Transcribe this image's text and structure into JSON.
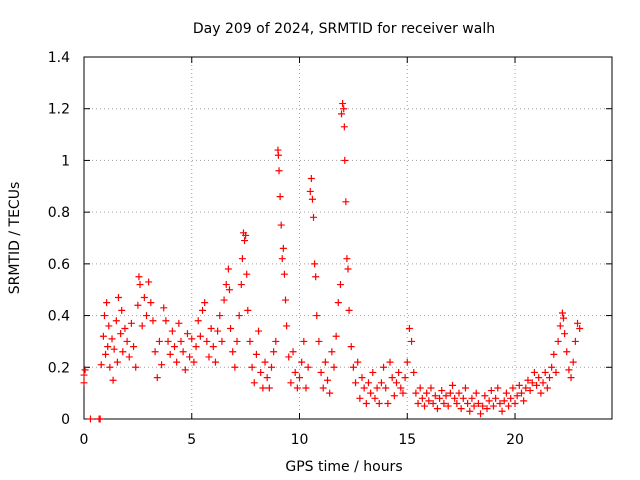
{
  "chart_data": {
    "type": "scatter",
    "title": "Day 209 of 2024, SRMTID for receiver walh",
    "xlabel": "GPS time / hours",
    "ylabel": "SRMTID / TECUs",
    "xlim": [
      0,
      24.5
    ],
    "ylim": [
      0,
      1.4
    ],
    "xticks": [
      0,
      5,
      10,
      15,
      20
    ],
    "xtick_labels": [
      "0",
      "5",
      "10",
      "15",
      "20"
    ],
    "yticks": [
      0,
      0.2,
      0.4,
      0.6,
      0.8,
      1,
      1.2,
      1.4
    ],
    "ytick_labels": [
      "0",
      "0.2",
      "0.4",
      "0.6",
      "0.8",
      "1",
      "1.2",
      "1.4"
    ],
    "grid": true,
    "marker": "+",
    "color": "#ff0000",
    "series": [
      {
        "name": "SRMTID",
        "points": [
          [
            0.0,
            0.17
          ],
          [
            0.0,
            0.14
          ],
          [
            0.05,
            0.19
          ],
          [
            0.3,
            0.0
          ],
          [
            0.7,
            0.0
          ],
          [
            0.75,
            0.0
          ],
          [
            0.8,
            0.21
          ],
          [
            0.9,
            0.32
          ],
          [
            0.95,
            0.4
          ],
          [
            1.0,
            0.25
          ],
          [
            1.05,
            0.45
          ],
          [
            1.1,
            0.28
          ],
          [
            1.15,
            0.36
          ],
          [
            1.2,
            0.2
          ],
          [
            1.3,
            0.31
          ],
          [
            1.35,
            0.15
          ],
          [
            1.4,
            0.27
          ],
          [
            1.5,
            0.38
          ],
          [
            1.55,
            0.22
          ],
          [
            1.6,
            0.47
          ],
          [
            1.7,
            0.33
          ],
          [
            1.75,
            0.42
          ],
          [
            1.8,
            0.26
          ],
          [
            1.9,
            0.35
          ],
          [
            2.0,
            0.3
          ],
          [
            2.1,
            0.24
          ],
          [
            2.2,
            0.37
          ],
          [
            2.3,
            0.28
          ],
          [
            2.4,
            0.2
          ],
          [
            2.5,
            0.44
          ],
          [
            2.55,
            0.55
          ],
          [
            2.6,
            0.52
          ],
          [
            2.7,
            0.36
          ],
          [
            2.8,
            0.47
          ],
          [
            2.9,
            0.4
          ],
          [
            3.0,
            0.53
          ],
          [
            3.1,
            0.45
          ],
          [
            3.2,
            0.38
          ],
          [
            3.3,
            0.26
          ],
          [
            3.4,
            0.16
          ],
          [
            3.5,
            0.3
          ],
          [
            3.6,
            0.21
          ],
          [
            3.7,
            0.43
          ],
          [
            3.8,
            0.38
          ],
          [
            3.9,
            0.3
          ],
          [
            4.0,
            0.25
          ],
          [
            4.1,
            0.34
          ],
          [
            4.2,
            0.28
          ],
          [
            4.3,
            0.22
          ],
          [
            4.4,
            0.37
          ],
          [
            4.5,
            0.3
          ],
          [
            4.6,
            0.26
          ],
          [
            4.7,
            0.19
          ],
          [
            4.8,
            0.33
          ],
          [
            4.9,
            0.24
          ],
          [
            5.0,
            0.31
          ],
          [
            5.1,
            0.22
          ],
          [
            5.2,
            0.28
          ],
          [
            5.3,
            0.38
          ],
          [
            5.4,
            0.32
          ],
          [
            5.5,
            0.42
          ],
          [
            5.6,
            0.45
          ],
          [
            5.7,
            0.3
          ],
          [
            5.8,
            0.24
          ],
          [
            5.9,
            0.35
          ],
          [
            6.0,
            0.28
          ],
          [
            6.1,
            0.22
          ],
          [
            6.2,
            0.34
          ],
          [
            6.3,
            0.4
          ],
          [
            6.4,
            0.3
          ],
          [
            6.5,
            0.46
          ],
          [
            6.6,
            0.52
          ],
          [
            6.7,
            0.58
          ],
          [
            6.75,
            0.5
          ],
          [
            6.8,
            0.35
          ],
          [
            6.9,
            0.26
          ],
          [
            7.0,
            0.2
          ],
          [
            7.1,
            0.3
          ],
          [
            7.2,
            0.4
          ],
          [
            7.3,
            0.52
          ],
          [
            7.35,
            0.62
          ],
          [
            7.4,
            0.72
          ],
          [
            7.45,
            0.69
          ],
          [
            7.5,
            0.71
          ],
          [
            7.55,
            0.56
          ],
          [
            7.6,
            0.42
          ],
          [
            7.7,
            0.3
          ],
          [
            7.8,
            0.2
          ],
          [
            7.9,
            0.14
          ],
          [
            8.0,
            0.25
          ],
          [
            8.1,
            0.34
          ],
          [
            8.2,
            0.18
          ],
          [
            8.3,
            0.12
          ],
          [
            8.4,
            0.22
          ],
          [
            8.5,
            0.16
          ],
          [
            8.6,
            0.12
          ],
          [
            8.7,
            0.2
          ],
          [
            8.8,
            0.26
          ],
          [
            8.9,
            0.3
          ],
          [
            9.0,
            1.04
          ],
          [
            9.02,
            1.02
          ],
          [
            9.05,
            0.96
          ],
          [
            9.1,
            0.86
          ],
          [
            9.15,
            0.75
          ],
          [
            9.2,
            0.62
          ],
          [
            9.25,
            0.66
          ],
          [
            9.3,
            0.56
          ],
          [
            9.35,
            0.46
          ],
          [
            9.4,
            0.36
          ],
          [
            9.5,
            0.24
          ],
          [
            9.6,
            0.14
          ],
          [
            9.7,
            0.26
          ],
          [
            9.8,
            0.18
          ],
          [
            9.9,
            0.12
          ],
          [
            10.0,
            0.16
          ],
          [
            10.1,
            0.22
          ],
          [
            10.2,
            0.3
          ],
          [
            10.3,
            0.12
          ],
          [
            10.4,
            0.2
          ],
          [
            10.5,
            0.88
          ],
          [
            10.55,
            0.93
          ],
          [
            10.6,
            0.85
          ],
          [
            10.65,
            0.78
          ],
          [
            10.7,
            0.6
          ],
          [
            10.75,
            0.55
          ],
          [
            10.8,
            0.4
          ],
          [
            10.9,
            0.3
          ],
          [
            11.0,
            0.18
          ],
          [
            11.1,
            0.12
          ],
          [
            11.2,
            0.22
          ],
          [
            11.3,
            0.15
          ],
          [
            11.4,
            0.1
          ],
          [
            11.5,
            0.26
          ],
          [
            11.6,
            0.2
          ],
          [
            11.7,
            0.32
          ],
          [
            11.8,
            0.45
          ],
          [
            11.9,
            0.52
          ],
          [
            11.95,
            1.18
          ],
          [
            12.0,
            1.22
          ],
          [
            12.05,
            1.2
          ],
          [
            12.08,
            1.13
          ],
          [
            12.1,
            1.0
          ],
          [
            12.15,
            0.84
          ],
          [
            12.2,
            0.62
          ],
          [
            12.25,
            0.58
          ],
          [
            12.3,
            0.42
          ],
          [
            12.4,
            0.28
          ],
          [
            12.5,
            0.2
          ],
          [
            12.6,
            0.14
          ],
          [
            12.7,
            0.22
          ],
          [
            12.8,
            0.08
          ],
          [
            12.9,
            0.16
          ],
          [
            13.0,
            0.12
          ],
          [
            13.1,
            0.06
          ],
          [
            13.2,
            0.14
          ],
          [
            13.3,
            0.1
          ],
          [
            13.4,
            0.18
          ],
          [
            13.5,
            0.08
          ],
          [
            13.6,
            0.12
          ],
          [
            13.7,
            0.06
          ],
          [
            13.8,
            0.14
          ],
          [
            13.9,
            0.2
          ],
          [
            14.0,
            0.12
          ],
          [
            14.1,
            0.06
          ],
          [
            14.2,
            0.22
          ],
          [
            14.3,
            0.16
          ],
          [
            14.4,
            0.09
          ],
          [
            14.5,
            0.14
          ],
          [
            14.6,
            0.18
          ],
          [
            14.7,
            0.12
          ],
          [
            14.8,
            0.1
          ],
          [
            14.9,
            0.16
          ],
          [
            15.0,
            0.22
          ],
          [
            15.1,
            0.35
          ],
          [
            15.2,
            0.3
          ],
          [
            15.3,
            0.18
          ],
          [
            15.4,
            0.1
          ],
          [
            15.5,
            0.06
          ],
          [
            15.6,
            0.12
          ],
          [
            15.7,
            0.08
          ],
          [
            15.8,
            0.05
          ],
          [
            15.9,
            0.1
          ],
          [
            16.0,
            0.07
          ],
          [
            16.1,
            0.12
          ],
          [
            16.2,
            0.06
          ],
          [
            16.3,
            0.09
          ],
          [
            16.4,
            0.04
          ],
          [
            16.5,
            0.08
          ],
          [
            16.6,
            0.11
          ],
          [
            16.7,
            0.06
          ],
          [
            16.8,
            0.09
          ],
          [
            16.9,
            0.05
          ],
          [
            17.0,
            0.1
          ],
          [
            17.1,
            0.13
          ],
          [
            17.2,
            0.08
          ],
          [
            17.3,
            0.06
          ],
          [
            17.4,
            0.1
          ],
          [
            17.5,
            0.04
          ],
          [
            17.6,
            0.08
          ],
          [
            17.7,
            0.12
          ],
          [
            17.8,
            0.06
          ],
          [
            17.9,
            0.03
          ],
          [
            18.0,
            0.08
          ],
          [
            18.1,
            0.05
          ],
          [
            18.2,
            0.1
          ],
          [
            18.3,
            0.06
          ],
          [
            18.4,
            0.02
          ],
          [
            18.5,
            0.05
          ],
          [
            18.6,
            0.09
          ],
          [
            18.7,
            0.04
          ],
          [
            18.8,
            0.07
          ],
          [
            18.9,
            0.11
          ],
          [
            19.0,
            0.05
          ],
          [
            19.1,
            0.08
          ],
          [
            19.2,
            0.12
          ],
          [
            19.3,
            0.06
          ],
          [
            19.4,
            0.03
          ],
          [
            19.5,
            0.07
          ],
          [
            19.6,
            0.1
          ],
          [
            19.7,
            0.05
          ],
          [
            19.8,
            0.08
          ],
          [
            19.9,
            0.12
          ],
          [
            20.0,
            0.06
          ],
          [
            20.1,
            0.09
          ],
          [
            20.2,
            0.13
          ],
          [
            20.3,
            0.1
          ],
          [
            20.4,
            0.07
          ],
          [
            20.5,
            0.12
          ],
          [
            20.6,
            0.15
          ],
          [
            20.7,
            0.11
          ],
          [
            20.8,
            0.14
          ],
          [
            20.9,
            0.18
          ],
          [
            21.0,
            0.13
          ],
          [
            21.1,
            0.16
          ],
          [
            21.2,
            0.1
          ],
          [
            21.3,
            0.14
          ],
          [
            21.4,
            0.18
          ],
          [
            21.5,
            0.12
          ],
          [
            21.6,
            0.16
          ],
          [
            21.7,
            0.2
          ],
          [
            21.8,
            0.25
          ],
          [
            21.9,
            0.18
          ],
          [
            22.0,
            0.3
          ],
          [
            22.1,
            0.36
          ],
          [
            22.2,
            0.41
          ],
          [
            22.25,
            0.39
          ],
          [
            22.3,
            0.33
          ],
          [
            22.4,
            0.26
          ],
          [
            22.5,
            0.19
          ],
          [
            22.6,
            0.16
          ],
          [
            22.7,
            0.22
          ],
          [
            22.8,
            0.3
          ],
          [
            22.9,
            0.37
          ],
          [
            23.0,
            0.35
          ]
        ]
      }
    ]
  }
}
